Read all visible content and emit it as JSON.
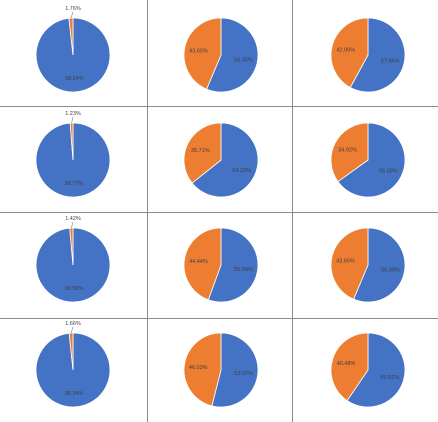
{
  "colors": {
    "major": "#4472c4",
    "minor": "#ed7d31",
    "grid": "#8c8c8c",
    "label": "#404040"
  },
  "chart_data": [
    {
      "type": "pie",
      "row": 1,
      "column": 1,
      "values": [
        98.24,
        1.76
      ],
      "labels": [
        "98.24%",
        "1.76%"
      ],
      "colors": [
        "#4472c4",
        "#ed7d31"
      ],
      "minor_label_placement": "outside-top"
    },
    {
      "type": "pie",
      "row": 1,
      "column": 2,
      "values": [
        56.35,
        43.65
      ],
      "labels": [
        "56.35%",
        "43.65%"
      ],
      "colors": [
        "#4472c4",
        "#ed7d31"
      ]
    },
    {
      "type": "pie",
      "row": 1,
      "column": 3,
      "values": [
        57.94,
        42.06
      ],
      "labels": [
        "57.94%",
        "42.06%"
      ],
      "colors": [
        "#4472c4",
        "#ed7d31"
      ]
    },
    {
      "type": "pie",
      "row": 2,
      "column": 1,
      "values": [
        98.77,
        1.23
      ],
      "labels": [
        "98.77%",
        "1.23%"
      ],
      "colors": [
        "#4472c4",
        "#ed7d31"
      ],
      "minor_label_placement": "outside-top"
    },
    {
      "type": "pie",
      "row": 2,
      "column": 2,
      "values": [
        64.29,
        35.71
      ],
      "labels": [
        "64.29%",
        "35.71%"
      ],
      "colors": [
        "#4472c4",
        "#ed7d31"
      ]
    },
    {
      "type": "pie",
      "row": 2,
      "column": 3,
      "values": [
        65.08,
        34.92
      ],
      "labels": [
        "65.08%",
        "34.92%"
      ],
      "colors": [
        "#4472c4",
        "#ed7d31"
      ]
    },
    {
      "type": "pie",
      "row": 3,
      "column": 1,
      "values": [
        98.58,
        1.42
      ],
      "labels": [
        "98.58%",
        "1.42%"
      ],
      "colors": [
        "#4472c4",
        "#ed7d31"
      ],
      "minor_label_placement": "outside-top"
    },
    {
      "type": "pie",
      "row": 3,
      "column": 2,
      "values": [
        55.56,
        44.44
      ],
      "labels": [
        "55.56%",
        "44.44%"
      ],
      "colors": [
        "#4472c4",
        "#ed7d31"
      ]
    },
    {
      "type": "pie",
      "row": 3,
      "column": 3,
      "values": [
        56.35,
        43.65
      ],
      "labels": [
        "56.35%",
        "43.65%"
      ],
      "colors": [
        "#4472c4",
        "#ed7d31"
      ]
    },
    {
      "type": "pie",
      "row": 4,
      "column": 1,
      "values": [
        98.34,
        1.66
      ],
      "labels": [
        "98.34%",
        "1.66%"
      ],
      "colors": [
        "#4472c4",
        "#ed7d31"
      ],
      "minor_label_placement": "outside-top"
    },
    {
      "type": "pie",
      "row": 4,
      "column": 2,
      "values": [
        53.97,
        46.03
      ],
      "labels": [
        "53.97%",
        "46.03%"
      ],
      "colors": [
        "#4472c4",
        "#ed7d31"
      ]
    },
    {
      "type": "pie",
      "row": 4,
      "column": 3,
      "values": [
        59.52,
        40.48
      ],
      "labels": [
        "59.52%",
        "40.48%"
      ],
      "colors": [
        "#4472c4",
        "#ed7d31"
      ]
    }
  ]
}
